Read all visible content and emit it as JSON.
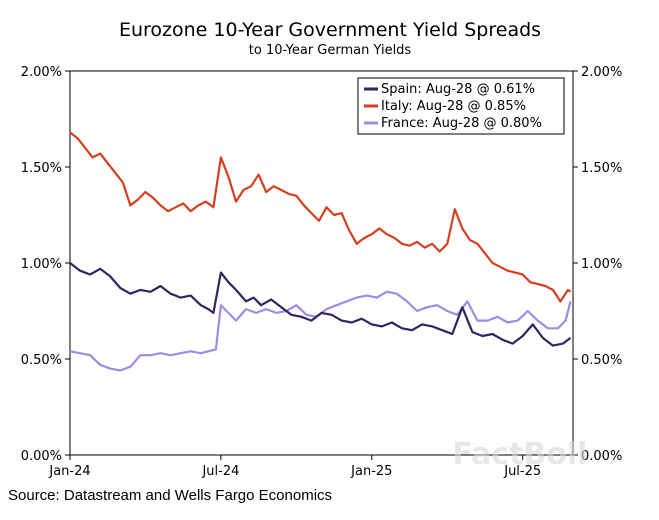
{
  "chart_data": {
    "type": "line",
    "title": "Eurozone 10-Year Government Yield Spreads",
    "subtitle": "to 10-Year German Yields",
    "ylim": [
      0,
      2
    ],
    "y_ticks": [
      0,
      0.5,
      1.0,
      1.5,
      2.0
    ],
    "y_tick_labels": [
      "0.00%",
      "0.50%",
      "1.00%",
      "1.50%",
      "2.00%"
    ],
    "x_range": [
      0,
      20
    ],
    "x_ticks": [
      0,
      6,
      12,
      18
    ],
    "x_tick_labels": [
      "Jan-24",
      "Jul-24",
      "Jan-25",
      "Jul-25"
    ],
    "source": "Source: Datastream and Wells Fargo Economics",
    "watermark": "FactBoll",
    "series": [
      {
        "name": "Spain",
        "legend": "Spain: Aug-28 @ 0.61%",
        "color": "#2e2660",
        "x": [
          0,
          0.4,
          0.8,
          1.2,
          1.6,
          2.0,
          2.4,
          2.8,
          3.2,
          3.6,
          4.0,
          4.4,
          4.8,
          5.2,
          5.5,
          5.7,
          6.0,
          6.3,
          6.6,
          7.0,
          7.3,
          7.6,
          8.0,
          8.4,
          8.8,
          9.2,
          9.6,
          10.0,
          10.4,
          10.8,
          11.2,
          11.6,
          12.0,
          12.4,
          12.8,
          13.2,
          13.6,
          14.0,
          14.4,
          14.8,
          15.2,
          15.6,
          16.0,
          16.4,
          16.8,
          17.2,
          17.6,
          18.0,
          18.4,
          18.8,
          19.2,
          19.6,
          19.9
        ],
        "values": [
          1.0,
          0.96,
          0.94,
          0.97,
          0.93,
          0.87,
          0.84,
          0.86,
          0.85,
          0.88,
          0.84,
          0.82,
          0.83,
          0.78,
          0.76,
          0.74,
          0.95,
          0.9,
          0.86,
          0.8,
          0.82,
          0.78,
          0.81,
          0.77,
          0.73,
          0.72,
          0.7,
          0.74,
          0.73,
          0.7,
          0.69,
          0.71,
          0.68,
          0.67,
          0.69,
          0.66,
          0.65,
          0.68,
          0.67,
          0.65,
          0.63,
          0.77,
          0.64,
          0.62,
          0.63,
          0.6,
          0.58,
          0.62,
          0.68,
          0.61,
          0.57,
          0.58,
          0.61
        ]
      },
      {
        "name": "Italy",
        "legend": "Italy: Aug-28 @ 0.85%",
        "color": "#d4401f",
        "x": [
          0,
          0.3,
          0.6,
          0.9,
          1.2,
          1.5,
          1.8,
          2.1,
          2.4,
          2.7,
          3.0,
          3.3,
          3.6,
          3.9,
          4.2,
          4.5,
          4.8,
          5.1,
          5.4,
          5.7,
          6.0,
          6.3,
          6.6,
          6.9,
          7.2,
          7.5,
          7.8,
          8.1,
          8.4,
          8.7,
          9.0,
          9.3,
          9.6,
          9.9,
          10.2,
          10.5,
          10.8,
          11.1,
          11.4,
          11.7,
          12.0,
          12.3,
          12.6,
          12.9,
          13.2,
          13.5,
          13.8,
          14.1,
          14.4,
          14.7,
          15.0,
          15.3,
          15.6,
          15.9,
          16.2,
          16.5,
          16.8,
          17.1,
          17.4,
          17.7,
          18.0,
          18.3,
          18.6,
          18.9,
          19.2,
          19.5,
          19.8,
          19.9
        ],
        "values": [
          1.68,
          1.65,
          1.6,
          1.55,
          1.57,
          1.52,
          1.47,
          1.42,
          1.3,
          1.33,
          1.37,
          1.34,
          1.3,
          1.27,
          1.29,
          1.31,
          1.27,
          1.3,
          1.32,
          1.29,
          1.55,
          1.45,
          1.32,
          1.38,
          1.4,
          1.46,
          1.37,
          1.4,
          1.38,
          1.36,
          1.35,
          1.3,
          1.26,
          1.22,
          1.29,
          1.25,
          1.26,
          1.17,
          1.1,
          1.13,
          1.15,
          1.18,
          1.15,
          1.13,
          1.1,
          1.09,
          1.11,
          1.08,
          1.1,
          1.06,
          1.1,
          1.28,
          1.18,
          1.12,
          1.1,
          1.05,
          1.0,
          0.98,
          0.96,
          0.95,
          0.94,
          0.9,
          0.89,
          0.88,
          0.86,
          0.8,
          0.86,
          0.85
        ]
      },
      {
        "name": "France",
        "legend": "France: Aug-28 @ 0.80%",
        "color": "#9d8ce6",
        "x": [
          0,
          0.4,
          0.8,
          1.2,
          1.6,
          2.0,
          2.4,
          2.8,
          3.2,
          3.6,
          4.0,
          4.4,
          4.8,
          5.2,
          5.5,
          5.8,
          6.0,
          6.3,
          6.6,
          7.0,
          7.4,
          7.8,
          8.2,
          8.6,
          9.0,
          9.4,
          9.8,
          10.2,
          10.6,
          11.0,
          11.4,
          11.8,
          12.2,
          12.6,
          13.0,
          13.4,
          13.8,
          14.2,
          14.6,
          15.0,
          15.4,
          15.8,
          16.2,
          16.6,
          17.0,
          17.4,
          17.8,
          18.2,
          18.6,
          19.0,
          19.4,
          19.7,
          19.9
        ],
        "values": [
          0.54,
          0.53,
          0.52,
          0.47,
          0.45,
          0.44,
          0.46,
          0.52,
          0.52,
          0.53,
          0.52,
          0.53,
          0.54,
          0.53,
          0.54,
          0.55,
          0.78,
          0.74,
          0.7,
          0.76,
          0.74,
          0.76,
          0.74,
          0.75,
          0.78,
          0.73,
          0.72,
          0.76,
          0.78,
          0.8,
          0.82,
          0.83,
          0.82,
          0.85,
          0.84,
          0.8,
          0.75,
          0.77,
          0.78,
          0.75,
          0.73,
          0.8,
          0.7,
          0.7,
          0.72,
          0.69,
          0.7,
          0.75,
          0.7,
          0.66,
          0.66,
          0.7,
          0.8
        ]
      }
    ]
  }
}
